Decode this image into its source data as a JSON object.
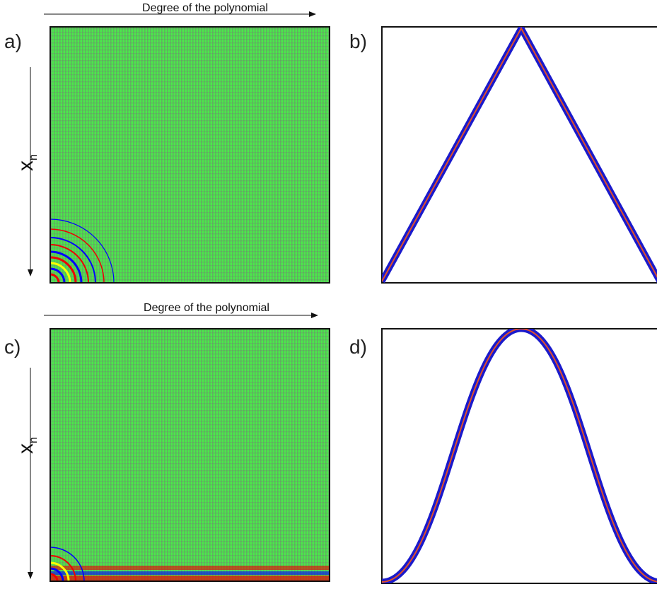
{
  "panels": [
    {
      "label": "a)",
      "x_axis_label": "Degree of the polynomial",
      "y_axis_label": {
        "main": "x",
        "subscript": "n"
      }
    },
    {
      "label": "b)"
    },
    {
      "label": "c)",
      "x_axis_label": "Degree of the polynomial",
      "y_axis_label": {
        "main": "x",
        "subscript": "n"
      }
    },
    {
      "label": "d)"
    }
  ]
}
